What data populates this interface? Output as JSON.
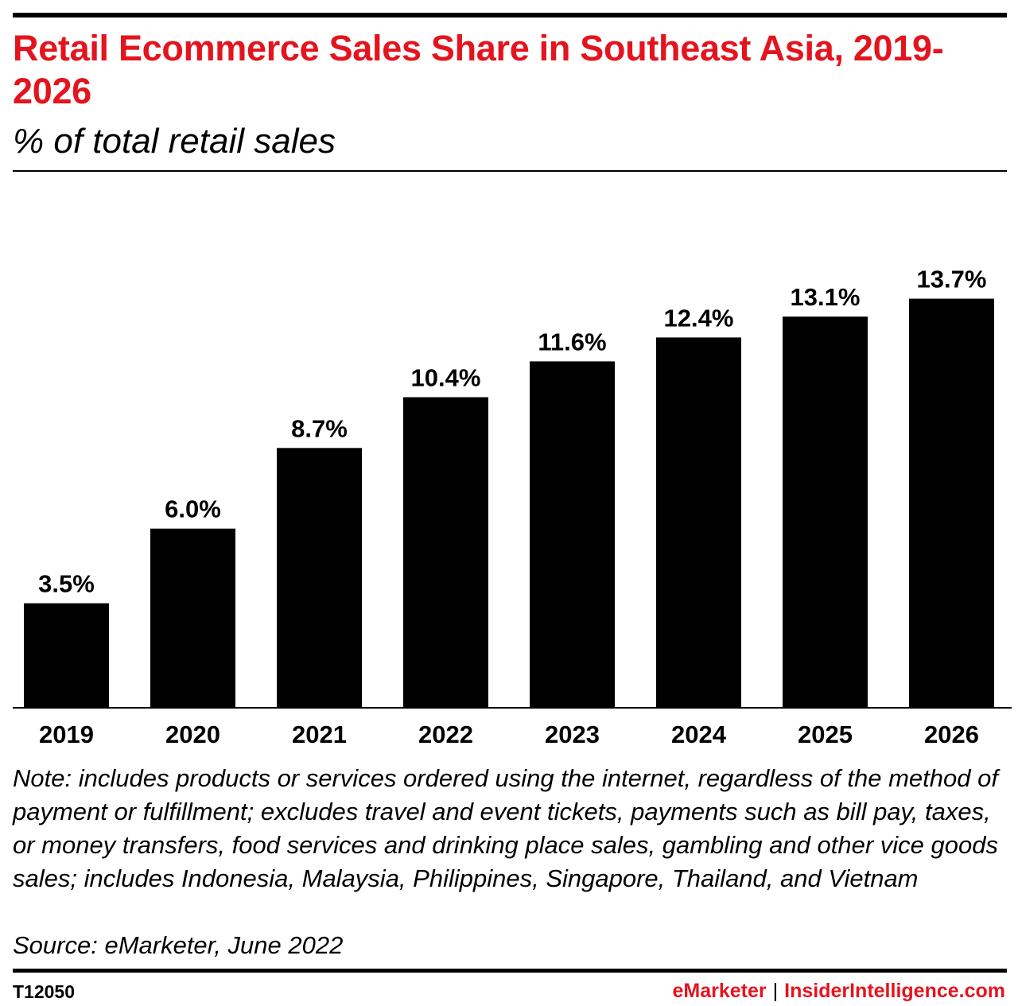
{
  "header": {
    "title": "Retail Ecommerce Sales Share in Southeast Asia, 2019-2026",
    "subtitle": "% of total retail sales"
  },
  "chart_data": {
    "type": "bar",
    "title": "Retail Ecommerce Sales Share in Southeast Asia, 2019-2026",
    "subtitle": "% of total retail sales",
    "categories": [
      "2019",
      "2020",
      "2021",
      "2022",
      "2023",
      "2024",
      "2025",
      "2026"
    ],
    "values": [
      3.5,
      6.0,
      8.7,
      10.4,
      11.6,
      12.4,
      13.1,
      13.7
    ],
    "data_labels": [
      "3.5%",
      "6.0%",
      "8.7%",
      "10.4%",
      "11.6%",
      "12.4%",
      "13.1%",
      "13.7%"
    ],
    "unit": "%",
    "xlabel": "",
    "ylabel": "",
    "ylim": [
      0,
      14
    ],
    "grid": false,
    "legend": "none",
    "bar_color": "#000000"
  },
  "footer": {
    "note": "Note: includes products or services ordered using the internet, regardless of the method of payment or fulfillment; excludes travel and event tickets, payments such as bill pay, taxes, or money transfers, food services and drinking place sales, gambling and other vice goods sales; includes Indonesia, Malaysia, Philippines, Singapore, Thailand, and Vietnam",
    "source": "Source: eMarketer, June 2022",
    "chart_id": "T12050",
    "brand_emarketer": "eMarketer",
    "brand_separator": "|",
    "brand_insider": "InsiderIntelligence.com"
  },
  "colors": {
    "accent": "#e4141e",
    "text": "#000000",
    "background": "#ffffff"
  }
}
